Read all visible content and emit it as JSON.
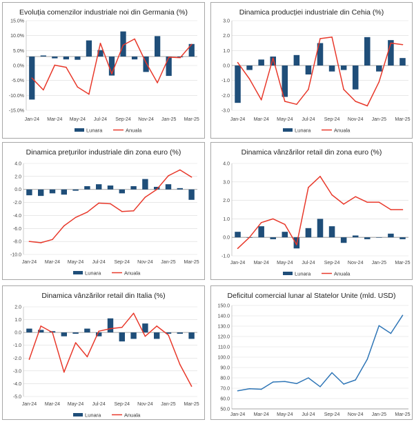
{
  "legend": {
    "monthly": "Lunara",
    "annual": "Anuala"
  },
  "colors": {
    "bar": "#1f4e79",
    "annual_line": "#e8382a",
    "single_line": "#2e75b6",
    "grid": "#d9d9d9",
    "axis": "#bfbfbf"
  },
  "chart_data": [
    {
      "type": "bar+line",
      "title": "Evoluția comenzilor industriale noi din Germania (%)",
      "categories": [
        "Jan-24",
        "Feb-24",
        "Mar-24",
        "Apr-24",
        "May-24",
        "Jun-24",
        "Jul-24",
        "Aug-24",
        "Sep-24",
        "Oct-24",
        "Nov-24",
        "Dec-24",
        "Jan-25",
        "Feb-25",
        "Mar-25"
      ],
      "x_tick_labels": [
        "Jan-24",
        "Mar-24",
        "May-24",
        "Jul-24",
        "Sep-24",
        "Nov-24",
        "Jan-25",
        "Mar-25"
      ],
      "y_ticks": [
        "15.0%",
        "10.0%",
        "5.0%",
        "0.0%",
        "-5.0%",
        "-10.0%",
        "-15.0%"
      ],
      "ylim": [
        -15,
        10
      ],
      "series": [
        {
          "name": "Lunara",
          "kind": "bar",
          "values": [
            -12.0,
            0.3,
            -0.5,
            -0.8,
            -0.9,
            4.5,
            1.8,
            -5.3,
            7.0,
            -0.8,
            -4.3,
            5.7,
            -5.4,
            -0.2,
            3.5
          ]
        },
        {
          "name": "Anuala",
          "kind": "line",
          "values": [
            -6.0,
            -9.3,
            -2.4,
            -3.0,
            -8.5,
            -10.5,
            3.7,
            -4.8,
            3.2,
            4.9,
            -1.7,
            -7.3,
            -0.2,
            -0.3,
            3.4
          ]
        }
      ]
    },
    {
      "type": "bar+line",
      "title": "Dinamica producției industriale din Cehia (%)",
      "categories": [
        "Jan-24",
        "Feb-24",
        "Mar-24",
        "Apr-24",
        "May-24",
        "Jun-24",
        "Jul-24",
        "Aug-24",
        "Sep-24",
        "Oct-24",
        "Nov-24",
        "Dec-24",
        "Jan-25",
        "Feb-25",
        "Mar-25"
      ],
      "x_tick_labels": [
        "Jan-24",
        "Mar-24",
        "May-24",
        "Jul-24",
        "Sep-24",
        "Nov-24",
        "Jan-25",
        "Mar-25"
      ],
      "y_ticks": [
        "3.0",
        "2.0",
        "1.0",
        "0.0",
        "-1.0",
        "-2.0",
        "-3.0"
      ],
      "ylim": [
        -3,
        3
      ],
      "series": [
        {
          "name": "Lunara",
          "kind": "bar",
          "values": [
            -2.5,
            -0.3,
            0.4,
            0.6,
            -2.1,
            0.7,
            -0.6,
            1.5,
            -0.4,
            -0.3,
            -1.6,
            1.9,
            -0.4,
            1.7,
            0.5
          ]
        },
        {
          "name": "Anuala",
          "kind": "line",
          "values": [
            0.2,
            -0.9,
            -2.3,
            0.5,
            -2.4,
            -2.6,
            -1.6,
            1.8,
            1.9,
            -1.6,
            -2.4,
            -2.7,
            -1.1,
            1.5,
            1.4
          ]
        }
      ]
    },
    {
      "type": "bar+line",
      "title": "Dinamica prețurilor industriale din zona euro (%)",
      "categories": [
        "Jan-24",
        "Feb-24",
        "Mar-24",
        "Apr-24",
        "May-24",
        "Jun-24",
        "Jul-24",
        "Aug-24",
        "Sep-24",
        "Oct-24",
        "Nov-24",
        "Dec-24",
        "Jan-25",
        "Feb-25",
        "Mar-25"
      ],
      "x_tick_labels": [
        "Jan-24",
        "Mar-24",
        "May-24",
        "Jul-24",
        "Sep-24",
        "Nov-24",
        "Jan-25",
        "Mar-25"
      ],
      "y_ticks": [
        "4.0",
        "2.0",
        "0.0",
        "-2.0",
        "-4.0",
        "-6.0",
        "-8.0",
        "-10.0"
      ],
      "ylim": [
        -10,
        4
      ],
      "series": [
        {
          "name": "Lunara",
          "kind": "bar",
          "values": [
            -0.9,
            -1.0,
            -0.6,
            -0.8,
            -0.2,
            0.5,
            0.8,
            0.6,
            -0.6,
            0.5,
            1.6,
            0.4,
            0.8,
            0.2,
            -1.6
          ]
        },
        {
          "name": "Anuala",
          "kind": "line",
          "values": [
            -8.0,
            -8.2,
            -7.7,
            -5.6,
            -4.3,
            -3.5,
            -2.1,
            -2.2,
            -3.4,
            -3.3,
            -1.2,
            0.0,
            2.1,
            3.0,
            1.9
          ]
        }
      ]
    },
    {
      "type": "bar+line",
      "title": "Dinamica vânzărilor retail din zona euro (%)",
      "categories": [
        "Jan-24",
        "Feb-24",
        "Mar-24",
        "Apr-24",
        "May-24",
        "Jun-24",
        "Jul-24",
        "Aug-24",
        "Sep-24",
        "Oct-24",
        "Nov-24",
        "Dec-24",
        "Jan-25",
        "Feb-25",
        "Mar-25"
      ],
      "x_tick_labels": [
        "Jan-24",
        "Mar-24",
        "May-24",
        "Jul-24",
        "Sep-24",
        "Nov-24",
        "Jan-25",
        "Mar-25"
      ],
      "y_ticks": [
        "4.0",
        "3.0",
        "2.0",
        "1.0",
        "0.0",
        "-1.0"
      ],
      "ylim": [
        -1,
        4
      ],
      "series": [
        {
          "name": "Lunara",
          "kind": "bar",
          "values": [
            0.3,
            0.0,
            0.6,
            -0.1,
            0.3,
            -0.6,
            0.5,
            1.0,
            0.6,
            -0.3,
            0.1,
            -0.1,
            0.0,
            0.2,
            -0.1
          ]
        },
        {
          "name": "Anuala",
          "kind": "line",
          "values": [
            -0.6,
            0.0,
            0.8,
            1.0,
            0.7,
            -0.4,
            2.7,
            3.3,
            2.3,
            1.8,
            2.2,
            1.9,
            1.9,
            1.5,
            1.5
          ]
        }
      ]
    },
    {
      "type": "bar+line",
      "title": "Dinamica vânzărilor retail din Italia (%)",
      "categories": [
        "Jan-24",
        "Feb-24",
        "Mar-24",
        "Apr-24",
        "May-24",
        "Jun-24",
        "Jul-24",
        "Aug-24",
        "Sep-24",
        "Oct-24",
        "Nov-24",
        "Dec-24",
        "Jan-25",
        "Feb-25",
        "Mar-25"
      ],
      "x_tick_labels": [
        "Jan-24",
        "Mar-24",
        "May-24",
        "Jul-24",
        "Sep-24",
        "Nov-24",
        "Jan-25",
        "Mar-25"
      ],
      "y_ticks": [
        "2.0",
        "1.0",
        "0.0",
        "-1.0",
        "-2.0",
        "-3.0",
        "-4.0",
        "-5.0"
      ],
      "ylim": [
        -5,
        2
      ],
      "series": [
        {
          "name": "Lunara",
          "kind": "bar",
          "values": [
            0.3,
            0.2,
            0.1,
            -0.3,
            -0.1,
            0.3,
            -0.3,
            1.1,
            -0.7,
            -0.5,
            0.7,
            -0.5,
            -0.1,
            -0.1,
            -0.5
          ]
        },
        {
          "name": "Anuala",
          "kind": "line",
          "values": [
            -2.1,
            0.5,
            0.0,
            -3.1,
            -0.8,
            -1.9,
            0.1,
            0.3,
            0.4,
            1.5,
            -0.3,
            0.5,
            -0.2,
            -2.5,
            -4.2
          ]
        }
      ]
    },
    {
      "type": "line",
      "title": "Deficitul comercial lunar al Statelor Unite (mld. USD)",
      "categories": [
        "Jan-24",
        "Feb-24",
        "Mar-24",
        "Apr-24",
        "May-24",
        "Jun-24",
        "Jul-24",
        "Aug-24",
        "Sep-24",
        "Oct-24",
        "Nov-24",
        "Dec-24",
        "Jan-25",
        "Feb-25",
        "Mar-25"
      ],
      "x_tick_labels": [
        "Jan-24",
        "Mar-24",
        "May-24",
        "Jul-24",
        "Sep-24",
        "Nov-24",
        "Jan-25",
        "Mar-25"
      ],
      "y_ticks": [
        "150.0",
        "140.0",
        "130.0",
        "120.0",
        "110.0",
        "100.0",
        "90.0",
        "80.0",
        "70.0",
        "60.0",
        "50.0"
      ],
      "ylim": [
        50,
        150
      ],
      "series": [
        {
          "name": "Deficit",
          "kind": "line",
          "values": [
            67.5,
            69.5,
            69.0,
            76.0,
            76.5,
            74.5,
            80.0,
            71.5,
            85.0,
            74.0,
            78.0,
            98.0,
            130.5,
            123.0,
            140.5
          ]
        }
      ]
    }
  ]
}
